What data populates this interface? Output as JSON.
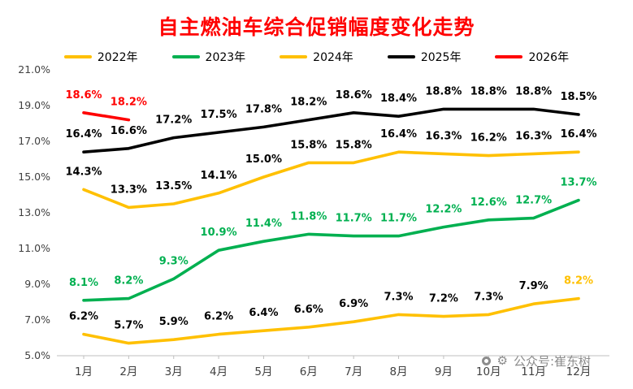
{
  "title": "自主燃油车综合促销幅度变化走势",
  "watermark": {
    "text": "公众号:崔东树"
  },
  "chart_data": {
    "type": "line",
    "title": "自主燃油车综合促销幅度变化走势",
    "categories": [
      "1月",
      "2月",
      "3月",
      "4月",
      "5月",
      "6月",
      "7月",
      "8月",
      "9月",
      "10月",
      "11月",
      "12月"
    ],
    "ylim": [
      5,
      21
    ],
    "yticks": [
      5,
      7,
      9,
      11,
      13,
      15,
      17,
      19,
      21
    ],
    "ytick_labels": [
      "5.0%",
      "7.0%",
      "9.0%",
      "11.0%",
      "13.0%",
      "15.0%",
      "17.0%",
      "19.0%",
      "21.0%"
    ],
    "grid": false,
    "legend_position": "top",
    "series": [
      {
        "name": "2022年",
        "color": "#FFC000",
        "label_color": "#000000",
        "label_overrides": {
          "11": "#FFC000"
        },
        "values": [
          6.2,
          5.7,
          5.9,
          6.2,
          6.4,
          6.6,
          6.9,
          7.3,
          7.2,
          7.3,
          7.9,
          8.2
        ],
        "labels": [
          "6.2%",
          "5.7%",
          "5.9%",
          "6.2%",
          "6.4%",
          "6.6%",
          "6.9%",
          "7.3%",
          "7.2%",
          "7.3%",
          "7.9%",
          "8.2%"
        ]
      },
      {
        "name": "2023年",
        "color": "#00B050",
        "label_color": "#00B050",
        "values": [
          8.1,
          8.2,
          9.3,
          10.9,
          11.4,
          11.8,
          11.7,
          11.7,
          12.2,
          12.6,
          12.7,
          13.7
        ],
        "labels": [
          "8.1%",
          "8.2%",
          "9.3%",
          "10.9%",
          "11.4%",
          "11.8%",
          "11.7%",
          "11.7%",
          "12.2%",
          "12.6%",
          "12.7%",
          "13.7%"
        ]
      },
      {
        "name": "2024年",
        "color": "#FFC000",
        "label_color": "#000000",
        "values": [
          14.3,
          13.3,
          13.5,
          14.1,
          15.0,
          15.8,
          15.8,
          16.4,
          16.3,
          16.2,
          16.3,
          16.4
        ],
        "labels": [
          "14.3%",
          "13.3%",
          "13.5%",
          "14.1%",
          "15.0%",
          "15.8%",
          "15.8%",
          "16.4%",
          "16.3%",
          "16.2%",
          "16.3%",
          "16.4%"
        ]
      },
      {
        "name": "2025年",
        "color": "#000000",
        "label_color": "#000000",
        "values": [
          16.4,
          16.6,
          17.2,
          17.5,
          17.8,
          18.2,
          18.6,
          18.4,
          18.8,
          18.8,
          18.8,
          18.5
        ],
        "labels": [
          "16.4%",
          "16.6%",
          "17.2%",
          "17.5%",
          "17.8%",
          "18.2%",
          "18.6%",
          "18.4%",
          "18.8%",
          "18.8%",
          "18.8%",
          "18.5%"
        ]
      },
      {
        "name": "2026年",
        "color": "#FF0000",
        "label_color": "#FF0000",
        "values": [
          18.6,
          18.2
        ],
        "labels": [
          "18.6%",
          "18.2%"
        ]
      }
    ]
  }
}
